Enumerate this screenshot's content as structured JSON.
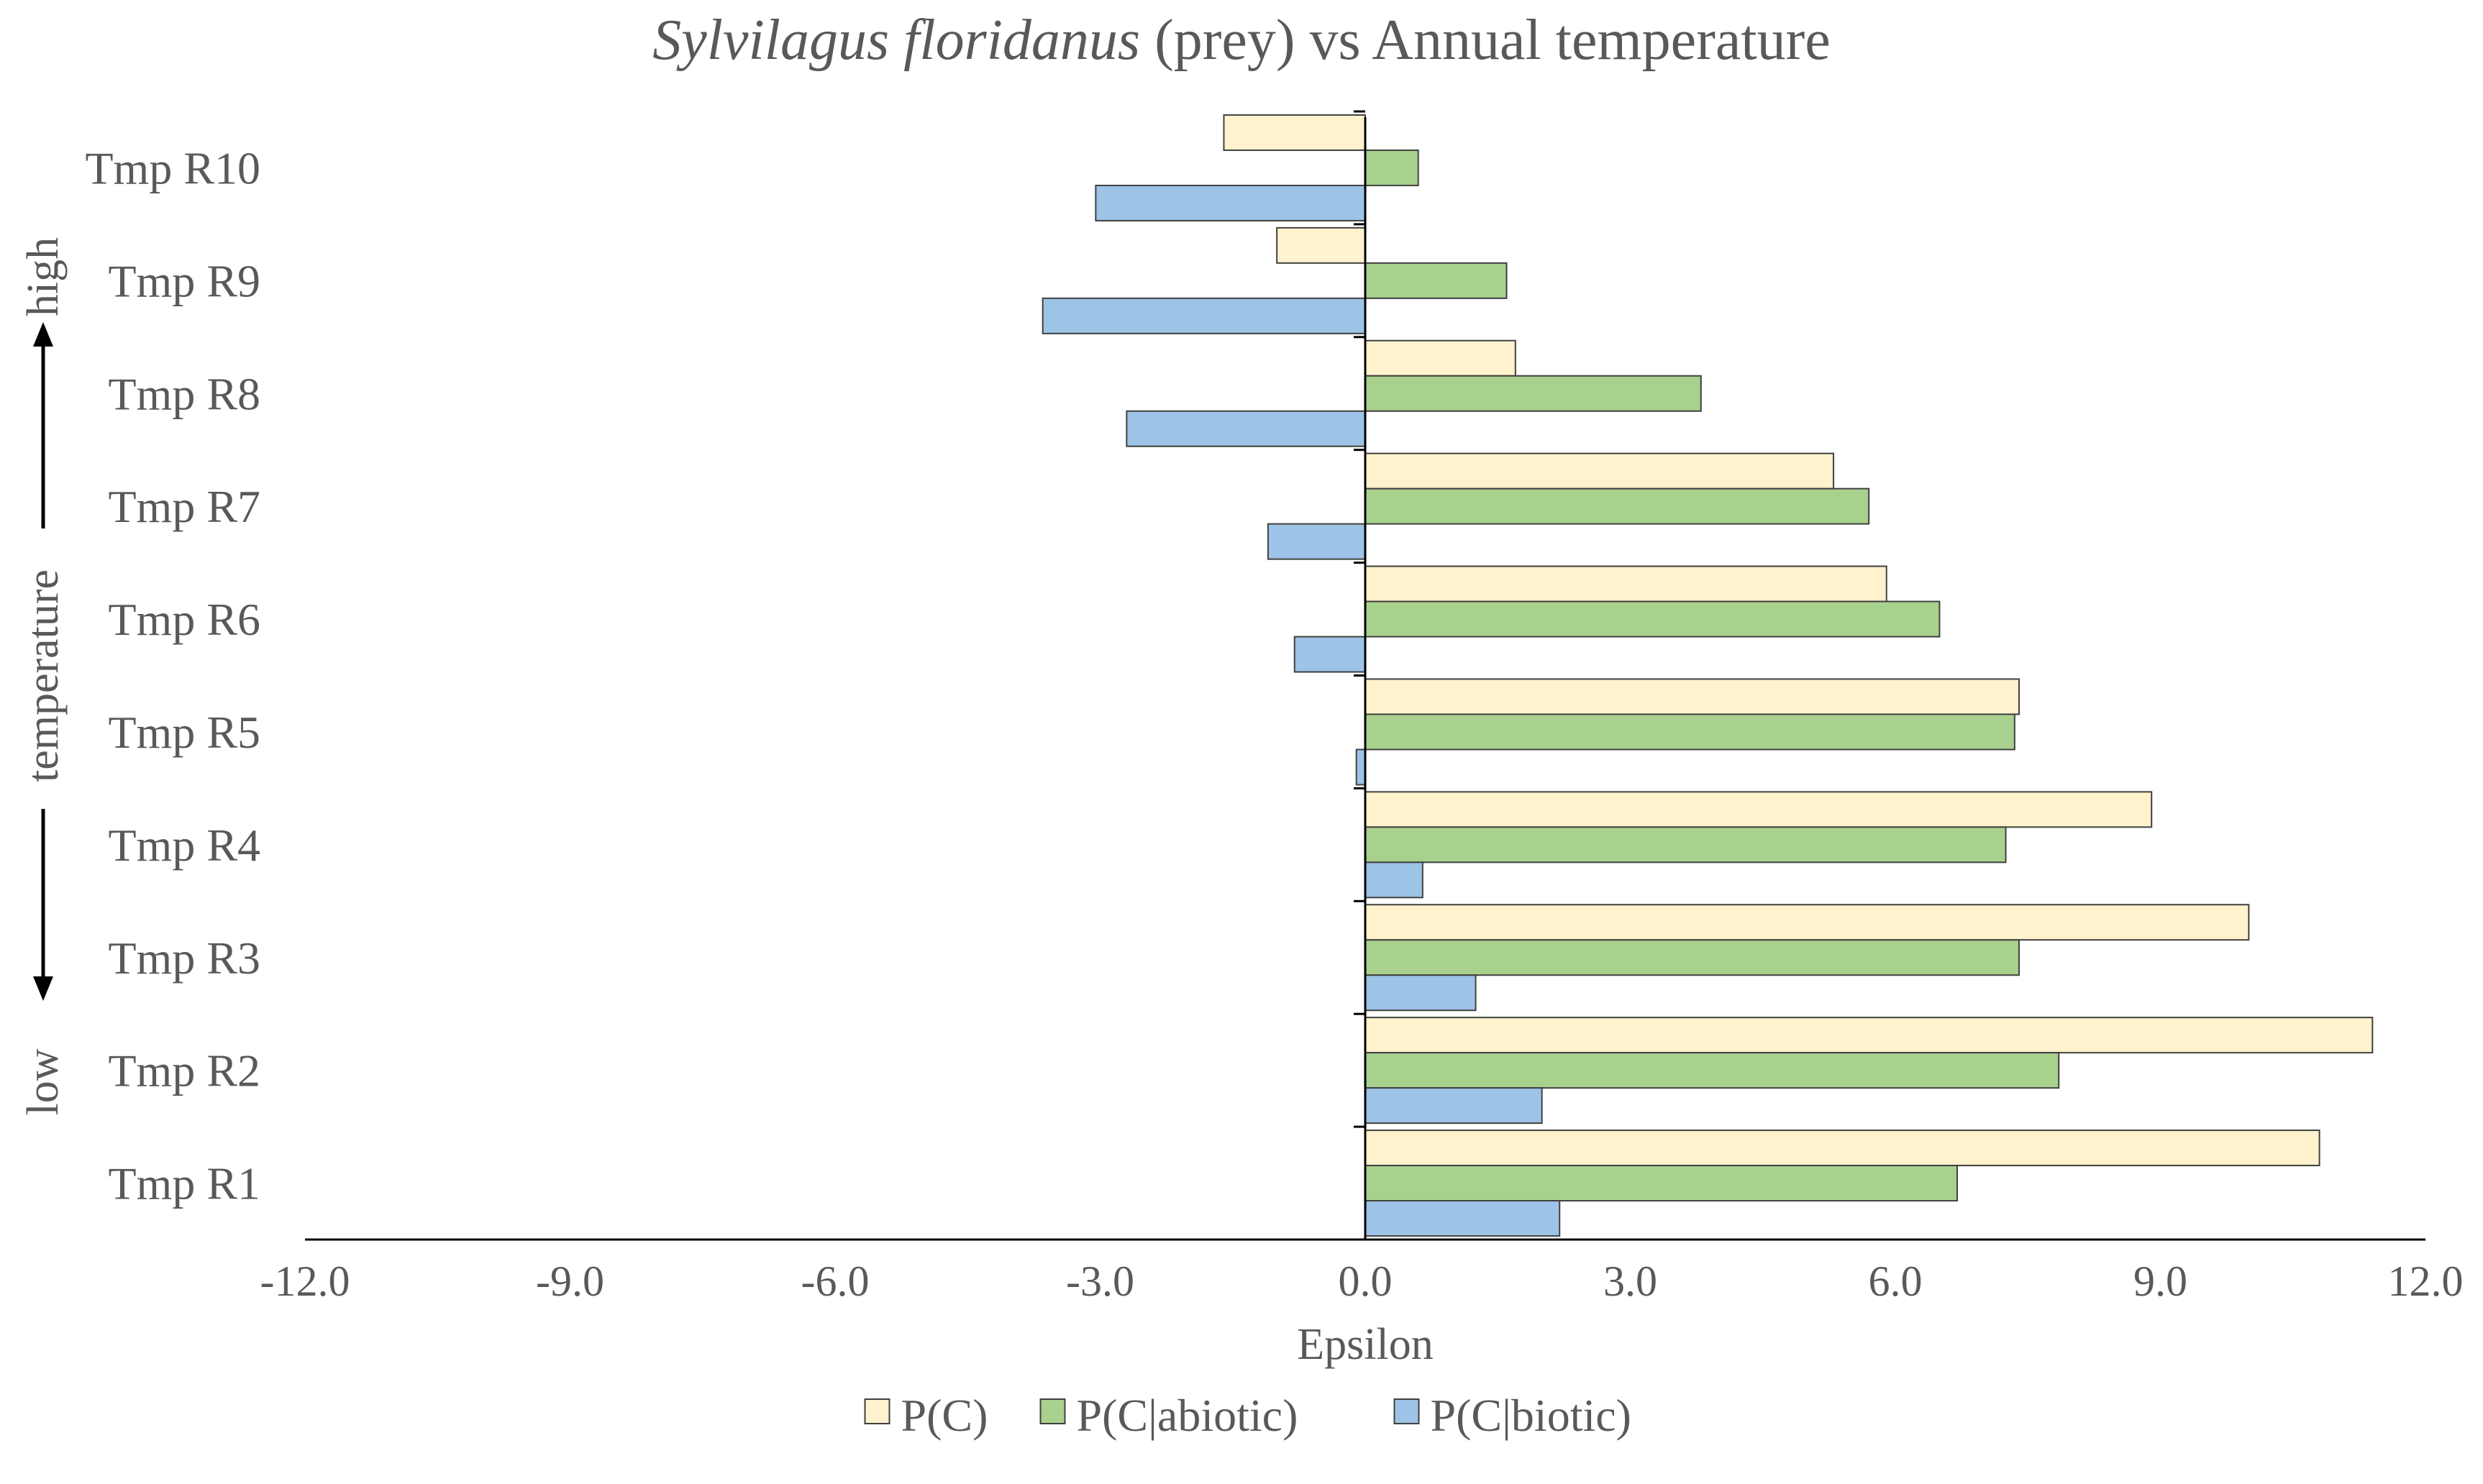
{
  "chart_data": {
    "type": "bar",
    "orientation": "horizontal",
    "title": {
      "species": "Sylvilagus floridanus",
      "rest": " (prey) vs Annual temperature"
    },
    "xlabel": "Epsilon",
    "xlim": [
      -12.0,
      12.0
    ],
    "xticks": [
      "-12.0",
      "-9.0",
      "-6.0",
      "-3.0",
      "0.0",
      "3.0",
      "6.0",
      "9.0",
      "12.0"
    ],
    "categories": [
      "Tmp R10",
      "Tmp R9",
      "Tmp R8",
      "Tmp R7",
      "Tmp R6",
      "Tmp R5",
      "Tmp R4",
      "Tmp R3",
      "Tmp R2",
      "Tmp R1"
    ],
    "series": [
      {
        "name": "P(C)",
        "color": "#FFF2CC",
        "values": [
          -1.6,
          -1.0,
          1.7,
          5.3,
          5.9,
          7.4,
          8.9,
          10.0,
          11.4,
          10.8
        ]
      },
      {
        "name": "P(C|abiotic)",
        "color": "#A9D18E",
        "values": [
          0.6,
          1.6,
          3.8,
          5.7,
          6.5,
          7.35,
          7.25,
          7.4,
          7.85,
          6.7
        ]
      },
      {
        "name": "P(C|biotic)",
        "color": "#9DC3E6",
        "values": [
          -3.05,
          -3.65,
          -2.7,
          -1.1,
          -0.8,
          -0.1,
          0.65,
          1.25,
          2.0,
          2.2
        ]
      }
    ],
    "side_label": {
      "top": "high",
      "middle": "temperature",
      "bottom": "low"
    },
    "legend_position": "bottom"
  }
}
